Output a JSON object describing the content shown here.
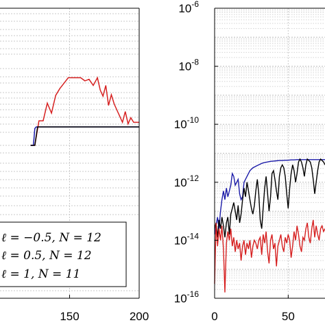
{
  "chart_data": [
    {
      "type": "line",
      "panel": "left",
      "x_ticks": [
        "150",
        "200"
      ],
      "legend": {
        "placement": "bottom-left",
        "entries": [
          "ℓ = −0.5,  N = 12",
          "ℓ = 0.5,  N = 12",
          "ℓ = 1,  N = 11"
        ]
      },
      "grid": true,
      "series": [
        {
          "color": "#d62020",
          "x": [
            122,
            125,
            128,
            131,
            134,
            137,
            140,
            143,
            146,
            149,
            152,
            155,
            158,
            161,
            164,
            167,
            170,
            172,
            174,
            176,
            178,
            180,
            182,
            184,
            186,
            188,
            190,
            192,
            194,
            196,
            198,
            200
          ],
          "y": [
            0.0,
            0.0,
            0.32,
            0.32,
            0.55,
            0.42,
            0.65,
            0.74,
            0.81,
            0.88,
            0.88,
            0.88,
            0.88,
            0.84,
            0.86,
            0.78,
            0.88,
            0.72,
            0.64,
            0.78,
            0.52,
            0.66,
            0.54,
            0.46,
            0.38,
            0.3,
            0.44,
            0.28,
            0.36,
            0.3,
            0.3,
            0.3
          ]
        },
        {
          "color": "#1a1aa8",
          "x": [
            122,
            124,
            125,
            126,
            128,
            200
          ],
          "y": [
            0.0,
            0.0,
            0.22,
            0.24,
            0.24,
            0.24
          ]
        },
        {
          "color": "#000000",
          "x": [
            122,
            125,
            127,
            128,
            130,
            200
          ],
          "y": [
            0.0,
            0.0,
            0.24,
            0.24,
            0.24,
            0.24
          ]
        }
      ]
    },
    {
      "type": "line",
      "panel": "right",
      "y_scale": "log",
      "ylim": [
        1e-16,
        1e-06
      ],
      "y_ticks": [
        {
          "base": "10",
          "exp": "-6"
        },
        {
          "base": "10",
          "exp": "-8"
        },
        {
          "base": "10",
          "exp": "-10"
        },
        {
          "base": "10",
          "exp": "-12"
        },
        {
          "base": "10",
          "exp": "-14"
        },
        {
          "base": "10",
          "exp": "-16"
        }
      ],
      "x_ticks": [
        "0",
        "50"
      ],
      "grid": true,
      "series": [
        {
          "color": "#d62020",
          "x": [
            0,
            1,
            2,
            3,
            4,
            5,
            6,
            7,
            8,
            9,
            10,
            11,
            12,
            13,
            14,
            15,
            16,
            17,
            18,
            19,
            20,
            21,
            22,
            23,
            24,
            25,
            26,
            27,
            28,
            29,
            30,
            31,
            32,
            33,
            34,
            35,
            36,
            37,
            38,
            39,
            40,
            41,
            42,
            43,
            44,
            45,
            46,
            47,
            48,
            49,
            50,
            51,
            52,
            53,
            54,
            55,
            56,
            57,
            58,
            59,
            60,
            61,
            62,
            63,
            64,
            65,
            66,
            67,
            68,
            69,
            70,
            71,
            72,
            73,
            74,
            75
          ],
          "logy": [
            -15.5,
            -13.4,
            -14.2,
            -13.6,
            -14.0,
            -13.5,
            -14.3,
            -15.8,
            -14.1,
            -13.7,
            -14.0,
            -13.6,
            -14.2,
            -13.9,
            -14.4,
            -14.0,
            -14.3,
            -14.1,
            -14.7,
            -14.2,
            -14.0,
            -14.5,
            -14.1,
            -14.3,
            -14.0,
            -14.6,
            -14.2,
            -14.0,
            -14.1,
            -14.3,
            -14.0,
            -13.9,
            -14.5,
            -13.8,
            -14.1,
            -13.7,
            -14.4,
            -14.8,
            -14.0,
            -13.8,
            -14.3,
            -14.1,
            -14.9,
            -14.2,
            -14.0,
            -13.8,
            -14.2,
            -14.4,
            -13.9,
            -14.1,
            -13.8,
            -14.0,
            -14.6,
            -14.2,
            -13.7,
            -14.0,
            -13.5,
            -13.8,
            -14.2,
            -14.4,
            -13.9,
            -14.0,
            -13.6,
            -13.4,
            -13.9,
            -14.1,
            -13.6,
            -13.3,
            -13.9,
            -13.5,
            -13.8,
            -14.0,
            -13.6,
            -13.5,
            -13.7,
            -13.6
          ]
        },
        {
          "color": "#1a1aa8",
          "x": [
            0,
            1,
            2,
            3,
            4,
            5,
            6,
            7,
            8,
            9,
            10,
            11,
            12,
            13,
            14,
            15,
            16,
            17,
            18,
            19,
            20,
            22,
            24,
            26,
            28,
            30,
            32,
            34,
            36,
            38,
            40,
            42,
            44,
            46,
            48,
            50,
            52,
            54,
            56,
            58,
            60,
            62,
            64,
            66,
            68,
            70,
            72,
            75
          ],
          "logy": [
            -13.8,
            -13.5,
            -13.2,
            -13.6,
            -13.0,
            -12.6,
            -12.3,
            -12.6,
            -12.2,
            -12.5,
            -12.3,
            -12.1,
            -11.7,
            -11.8,
            -12.1,
            -12.0,
            -11.9,
            -12.4,
            -12.6,
            -12.5,
            -12.0,
            -11.8,
            -11.6,
            -11.5,
            -11.45,
            -11.4,
            -11.35,
            -11.32,
            -11.3,
            -11.28,
            -11.27,
            -11.26,
            -11.25,
            -11.25,
            -11.24,
            -11.24,
            -11.23,
            -11.23,
            -11.22,
            -11.22,
            -11.22,
            -11.22,
            -11.22,
            -11.22,
            -11.22,
            -11.22,
            -11.22,
            -11.22
          ]
        },
        {
          "color": "#000000",
          "x": [
            0,
            1,
            2,
            3,
            4,
            5,
            6,
            7,
            8,
            9,
            10,
            11,
            12,
            13,
            14,
            15,
            16,
            17,
            18,
            19,
            20,
            21,
            22,
            23,
            24,
            25,
            26,
            27,
            28,
            29,
            30,
            31,
            32,
            33,
            34,
            35,
            36,
            37,
            38,
            39,
            40,
            41,
            42,
            43,
            44,
            45,
            46,
            47,
            48,
            49,
            50,
            51,
            52,
            53,
            54,
            55,
            56,
            57,
            58,
            59,
            60,
            61,
            62,
            63,
            64,
            65,
            66,
            67,
            68,
            69,
            70,
            71,
            72,
            73,
            74,
            75
          ],
          "logy": [
            -13.6,
            -13.4,
            -13.9,
            -13.3,
            -13.6,
            -13.2,
            -13.5,
            -13.9,
            -13.4,
            -13.2,
            -13.8,
            -13.1,
            -12.9,
            -12.7,
            -13.0,
            -13.3,
            -12.8,
            -13.4,
            -13.1,
            -12.6,
            -12.2,
            -12.5,
            -12.0,
            -12.3,
            -12.6,
            -12.9,
            -13.1,
            -12.8,
            -12.3,
            -11.9,
            -12.4,
            -13.3,
            -13.6,
            -12.9,
            -12.2,
            -11.8,
            -12.4,
            -13.0,
            -12.5,
            -11.7,
            -11.6,
            -11.9,
            -12.3,
            -12.6,
            -11.8,
            -11.5,
            -11.4,
            -11.5,
            -11.8,
            -12.4,
            -12.9,
            -12.2,
            -11.7,
            -11.4,
            -11.6,
            -12.0,
            -11.7,
            -11.3,
            -11.2,
            -11.3,
            -11.5,
            -11.8,
            -11.4,
            -11.2,
            -11.25,
            -11.3,
            -11.5,
            -11.9,
            -12.4,
            -12.0,
            -11.6,
            -11.3,
            -11.2,
            -11.25,
            -11.3,
            -11.4
          ]
        }
      ]
    }
  ]
}
